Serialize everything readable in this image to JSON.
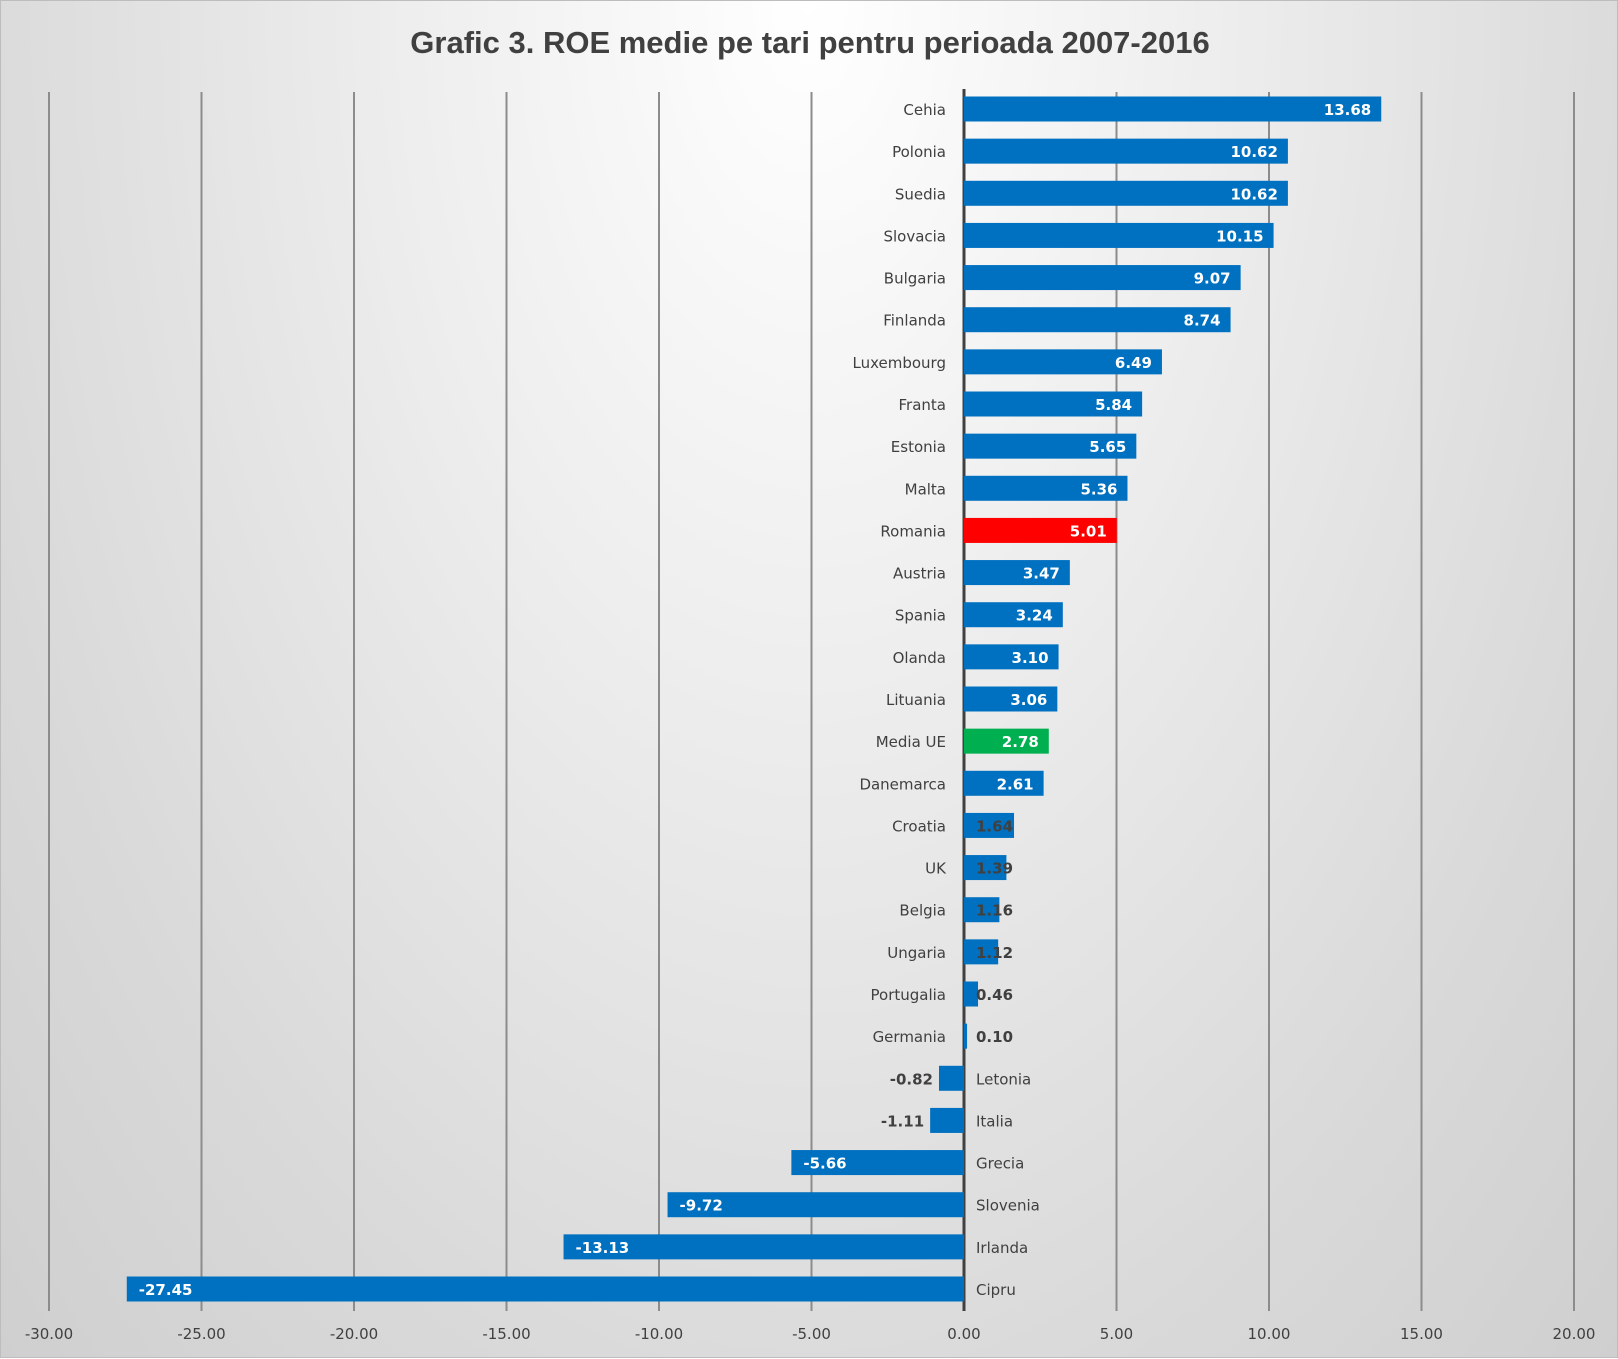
{
  "chart_data": {
    "type": "bar",
    "orientation": "horizontal",
    "title": "Grafic 3. ROE medie pe tari pentru perioada 2007-2016",
    "xlim": [
      -30,
      20
    ],
    "x_ticks": [
      "-30.00",
      "-25.00",
      "-20.00",
      "-15.00",
      "-10.00",
      "-5.00",
      "0.00",
      "5.00",
      "10.00",
      "15.00",
      "20.00"
    ],
    "grid": "vertical",
    "categories": [
      "Cehia",
      "Polonia",
      "Suedia",
      "Slovacia",
      "Bulgaria",
      "Finlanda",
      "Luxembourg",
      "Franta",
      "Estonia",
      "Malta",
      "Romania",
      "Austria",
      "Spania",
      "Olanda",
      "Lituania",
      "Media UE",
      "Danemarca",
      "Croatia",
      "UK",
      "Belgia",
      "Ungaria",
      "Portugalia",
      "Germania",
      "Letonia",
      "Italia",
      "Grecia",
      "Slovenia",
      "Irlanda",
      "Cipru"
    ],
    "values": [
      13.68,
      10.62,
      10.62,
      10.15,
      9.07,
      8.74,
      6.49,
      5.84,
      5.65,
      5.36,
      5.01,
      3.47,
      3.24,
      3.1,
      3.06,
      2.78,
      2.61,
      1.64,
      1.39,
      1.16,
      1.12,
      0.46,
      0.1,
      -0.82,
      -1.11,
      -5.66,
      -9.72,
      -13.13,
      -27.45
    ],
    "data_labels": [
      "13.68",
      "10.62",
      "10.62",
      "10.15",
      "9.07",
      "8.74",
      "6.49",
      "5.84",
      "5.65",
      "5.36",
      "5.01",
      "3.47",
      "3.24",
      "3.10",
      "3.06",
      "2.78",
      "2.61",
      "1.64",
      "1.39",
      "1.16",
      "1.12",
      "0.46",
      "0.10",
      "-0.82",
      "-1.11",
      "-5.66",
      "-9.72",
      "-13.13",
      "-27.45"
    ],
    "colors": {
      "default": "#0070C0",
      "Romania": "#FF0000",
      "Media UE": "#00B050"
    }
  }
}
